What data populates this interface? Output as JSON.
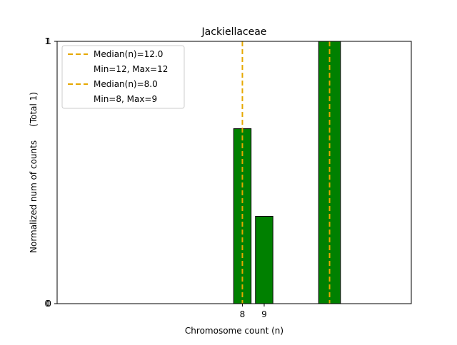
{
  "chart_data": {
    "type": "bar",
    "title": "Jackiellaceae",
    "xlabel": "Chromosome count (n)",
    "ylabel": "Normalized num of counts     (Total 1)",
    "x_range": [
      -0.5,
      15.75
    ],
    "ylim": [
      0,
      1
    ],
    "xticks": [
      8,
      9
    ],
    "yticks": [
      0,
      1
    ],
    "bars": [
      {
        "x": 8,
        "value": 0.667
      },
      {
        "x": 9,
        "value": 0.333
      },
      {
        "x": 12,
        "value": 1.0
      }
    ],
    "medians": [
      {
        "x": 12,
        "label": "Median(n)=12.0",
        "range_label": "Min=12, Max=12"
      },
      {
        "x": 8,
        "label": "Median(n)=8.0",
        "range_label": "Min=8, Max=9"
      }
    ],
    "grid": false,
    "legend_position": "top-left",
    "colors": {
      "bar": "#008000",
      "median": "#e6a800",
      "bar_edge": "#000000"
    }
  }
}
